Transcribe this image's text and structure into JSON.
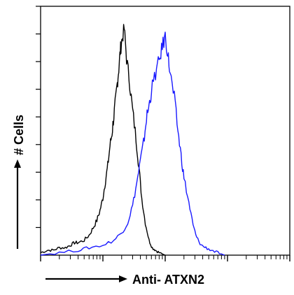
{
  "chart_data": {
    "type": "line",
    "xlabel": "Anti- ATXN2",
    "ylabel": "# Cells",
    "x_scale": "log",
    "xlim": [
      1,
      10000
    ],
    "ylim": [
      0,
      100
    ],
    "x_ticks_shown": true,
    "y_ticks_shown": true,
    "tick_labels_shown": false,
    "grid": false,
    "legend": "none",
    "series": [
      {
        "color": "#000000",
        "x": [
          1,
          1.3,
          1.6,
          2,
          2.5,
          3,
          3.5,
          4,
          5,
          6,
          7,
          8,
          9,
          10,
          11,
          12,
          13,
          14,
          15,
          16,
          17,
          18,
          19,
          20,
          22,
          24,
          27,
          30,
          34,
          38,
          42,
          48,
          55,
          62,
          70,
          80,
          100
        ],
        "y": [
          1,
          2,
          2,
          3,
          3,
          4,
          5,
          5,
          6,
          8,
          11,
          14,
          18,
          23,
          30,
          36,
          44,
          49,
          56,
          62,
          69,
          75,
          82,
          86,
          91,
          79,
          69,
          58,
          47,
          35,
          23,
          13,
          6,
          3,
          2,
          1,
          0
        ]
      },
      {
        "color": "#1a1aff",
        "x": [
          1,
          2,
          4,
          6,
          10,
          15,
          20,
          25,
          30,
          35,
          40,
          45,
          50,
          55,
          60,
          70,
          80,
          90,
          100,
          110,
          120,
          140,
          160,
          180,
          200,
          240,
          280,
          320,
          380,
          450,
          550,
          700,
          900
        ],
        "y": [
          0,
          1,
          2,
          3,
          4,
          6,
          9,
          13,
          20,
          29,
          38,
          45,
          55,
          60,
          66,
          73,
          78,
          84,
          88,
          81,
          73,
          63,
          50,
          40,
          31,
          21,
          12,
          7,
          4,
          3,
          2,
          1,
          0
        ]
      }
    ]
  }
}
